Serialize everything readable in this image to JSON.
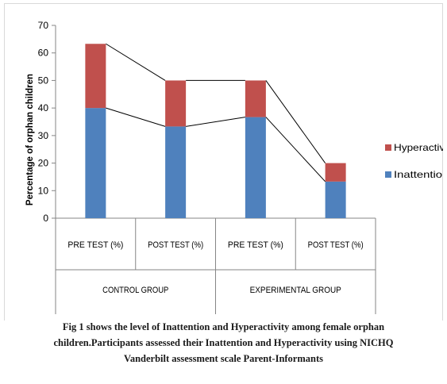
{
  "chart_data": {
    "type": "bar",
    "stacked": true,
    "ylabel": "Percentage of orphan children",
    "ylim": [
      0,
      70
    ],
    "yticks": [
      0,
      10,
      20,
      30,
      40,
      50,
      60,
      70
    ],
    "categories": [
      "PRE  TEST (%)",
      "POST TEST (%)",
      "PRE TEST (%)",
      "POST TEST (%)"
    ],
    "groups": [
      {
        "label": "CONTROL GROUP",
        "span": [
          0,
          1
        ]
      },
      {
        "label": "EXPERIMENTAL GROUP",
        "span": [
          2,
          3
        ]
      }
    ],
    "series": [
      {
        "name": "Inattention",
        "color": "#4f81bd",
        "values": [
          40,
          33.3,
          36.7,
          13.3
        ]
      },
      {
        "name": "Hyperactive/",
        "color": "#c0504d",
        "values": [
          23.3,
          16.7,
          13.3,
          6.7
        ]
      }
    ],
    "legend": "right",
    "grid": false,
    "series_lines": true
  },
  "caption": [
    "Fig 1 shows the level of Inattention and Hyperactivity among female orphan",
    "children.Participants assessed their Inattention and Hyperactivity using NICHQ",
    "Vanderbilt assessment scale Parent-Informants"
  ]
}
